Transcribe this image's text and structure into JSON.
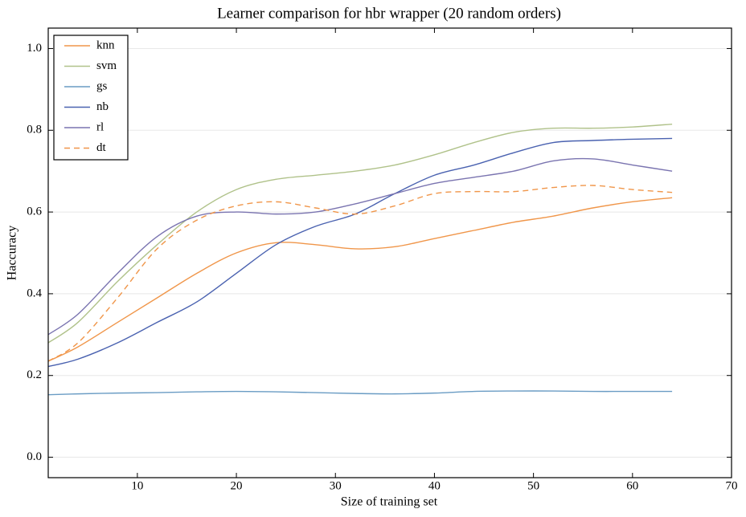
{
  "chart_data": {
    "type": "line",
    "title": "Learner comparison for hbr wrapper (20 random orders)",
    "x_label": "Size of training set",
    "y_label": "Haccuracy",
    "x": [
      1,
      4,
      8,
      12,
      16,
      20,
      24,
      28,
      32,
      36,
      40,
      44,
      48,
      52,
      56,
      60,
      64
    ],
    "series": [
      {
        "name": "knn",
        "color": "#f0964a",
        "style": "solid",
        "values": [
          0.235,
          0.27,
          0.33,
          0.39,
          0.45,
          0.5,
          0.525,
          0.52,
          0.51,
          0.515,
          0.535,
          0.555,
          0.575,
          0.59,
          0.61,
          0.625,
          0.635
        ]
      },
      {
        "name": "svm",
        "color": "#b0c28a",
        "style": "solid",
        "values": [
          0.28,
          0.33,
          0.43,
          0.52,
          0.6,
          0.655,
          0.68,
          0.69,
          0.7,
          0.715,
          0.74,
          0.77,
          0.795,
          0.805,
          0.805,
          0.808,
          0.815
        ]
      },
      {
        "name": "gs",
        "color": "#6a9cc4",
        "style": "solid",
        "values": [
          0.153,
          0.155,
          0.157,
          0.158,
          0.16,
          0.161,
          0.16,
          0.158,
          0.156,
          0.155,
          0.157,
          0.161,
          0.162,
          0.162,
          0.161,
          0.161,
          0.161
        ]
      },
      {
        "name": "nb",
        "color": "#4a62b0",
        "style": "solid",
        "values": [
          0.222,
          0.24,
          0.28,
          0.33,
          0.38,
          0.45,
          0.52,
          0.565,
          0.595,
          0.645,
          0.69,
          0.715,
          0.745,
          0.77,
          0.775,
          0.778,
          0.78
        ]
      },
      {
        "name": "rl",
        "color": "#7a74b0",
        "style": "solid",
        "values": [
          0.3,
          0.35,
          0.45,
          0.54,
          0.59,
          0.6,
          0.595,
          0.6,
          0.62,
          0.645,
          0.67,
          0.685,
          0.7,
          0.725,
          0.73,
          0.715,
          0.7
        ]
      },
      {
        "name": "dt",
        "color": "#f0964a",
        "style": "dashed",
        "values": [
          0.235,
          0.28,
          0.39,
          0.51,
          0.58,
          0.615,
          0.625,
          0.61,
          0.595,
          0.615,
          0.645,
          0.65,
          0.65,
          0.66,
          0.665,
          0.655,
          0.648
        ]
      }
    ],
    "xlim": [
      1,
      70
    ],
    "xticks": [
      10,
      20,
      30,
      40,
      50,
      60,
      70
    ],
    "ylim": [
      -0.05,
      1.05
    ],
    "yticks": [
      {
        "value": 0,
        "label": "0.0"
      },
      0.2,
      0.4,
      0.6,
      0.8,
      {
        "value": 1,
        "label": "1.0"
      }
    ],
    "grid": "y",
    "legend": "upper-left"
  }
}
